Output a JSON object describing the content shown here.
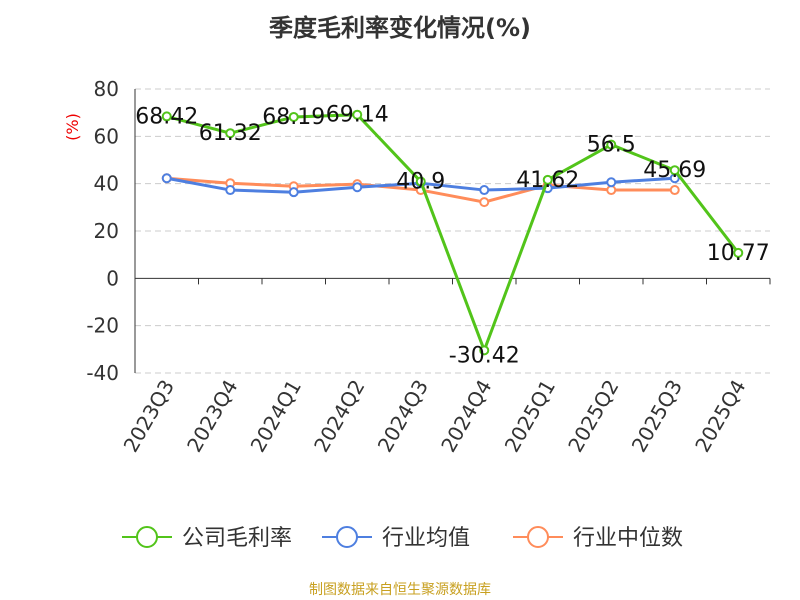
{
  "chart_data": {
    "type": "line",
    "title": "季度毛利率变化情况(%)",
    "ylabel": "(%)",
    "ylim": [
      -40,
      80
    ],
    "yticks": [
      80,
      60,
      40,
      20,
      0,
      -20,
      -40
    ],
    "grid": true,
    "categories": [
      "2023Q3",
      "2023Q4",
      "2024Q1",
      "2024Q2",
      "2024Q3",
      "2024Q4",
      "2025Q1",
      "2025Q2",
      "2025Q3",
      "2025Q4"
    ],
    "series": [
      {
        "name": "公司毛利率",
        "color": "#52c41a",
        "values": [
          68.42,
          61.32,
          68.19,
          69.14,
          40.9,
          -30.42,
          41.62,
          56.5,
          45.69,
          10.77
        ],
        "labels": [
          "68.42",
          "61.32",
          "68.19",
          "69.14",
          "40.9",
          "-30.42",
          "41.62",
          "56.5",
          "45.69",
          "10.77"
        ]
      },
      {
        "name": "行业均值",
        "color": "#4e7fe0",
        "values": [
          42.3,
          37.3,
          36.4,
          38.5,
          40.2,
          37.3,
          38.1,
          40.6,
          42.3,
          null
        ]
      },
      {
        "name": "行业中位数",
        "color": "#ff8c5a",
        "values": [
          42.3,
          40.2,
          38.9,
          39.8,
          37.3,
          32.2,
          39.4,
          37.3,
          37.3,
          null
        ]
      }
    ],
    "legend": "bottom"
  },
  "source": "制图数据来自恒生聚源数据库"
}
